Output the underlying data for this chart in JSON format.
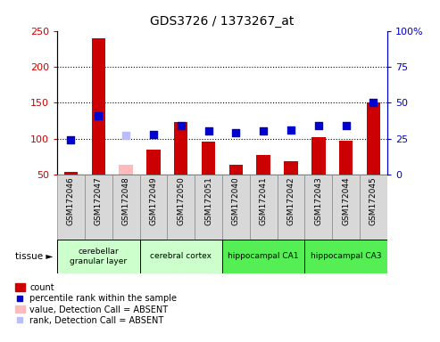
{
  "title": "GDS3726 / 1373267_at",
  "samples": [
    "GSM172046",
    "GSM172047",
    "GSM172048",
    "GSM172049",
    "GSM172050",
    "GSM172051",
    "GSM172040",
    "GSM172041",
    "GSM172042",
    "GSM172043",
    "GSM172044",
    "GSM172045"
  ],
  "count_values": [
    53,
    240,
    null,
    84,
    123,
    96,
    64,
    77,
    68,
    102,
    97,
    150
  ],
  "count_absent": [
    null,
    null,
    64,
    null,
    null,
    null,
    null,
    null,
    null,
    null,
    null,
    null
  ],
  "rank_values": [
    24,
    41,
    null,
    28,
    34,
    30,
    29,
    30,
    31,
    34,
    34,
    50
  ],
  "rank_absent": [
    null,
    null,
    27,
    null,
    null,
    null,
    null,
    null,
    null,
    null,
    null,
    null
  ],
  "tissue_groups": [
    {
      "label": "cerebellar\ngranular layer",
      "start": 0,
      "end": 2,
      "color": "#ccffcc"
    },
    {
      "label": "cerebral cortex",
      "start": 3,
      "end": 5,
      "color": "#ccffcc"
    },
    {
      "label": "hippocampal CA1",
      "start": 6,
      "end": 8,
      "color": "#55ee55"
    },
    {
      "label": "hippocampal CA3",
      "start": 9,
      "end": 11,
      "color": "#55ee55"
    }
  ],
  "ylim_left": [
    50,
    250
  ],
  "ylim_right": [
    0,
    100
  ],
  "yticks_left": [
    50,
    100,
    150,
    200,
    250
  ],
  "yticks_right": [
    0,
    25,
    50,
    75,
    100
  ],
  "ytick_labels_right": [
    "0",
    "25",
    "50",
    "75",
    "100%"
  ],
  "bar_color": "#cc0000",
  "bar_absent_color": "#ffbbbb",
  "dot_color": "#0000cc",
  "dot_absent_color": "#bbbbff",
  "dot_size": 35,
  "bar_width": 0.5,
  "grid_color": "#000000",
  "bg_color": "#ffffff",
  "axis_color_left": "#cc0000",
  "axis_color_right": "#0000cc",
  "sample_box_color": "#d8d8d8",
  "sample_box_edge": "#888888",
  "legend_items": [
    {
      "type": "patch",
      "color": "#cc0000",
      "label": "count"
    },
    {
      "type": "marker",
      "color": "#0000cc",
      "label": "percentile rank within the sample"
    },
    {
      "type": "patch",
      "color": "#ffbbbb",
      "label": "value, Detection Call = ABSENT"
    },
    {
      "type": "marker",
      "color": "#bbbbff",
      "label": "rank, Detection Call = ABSENT"
    }
  ]
}
